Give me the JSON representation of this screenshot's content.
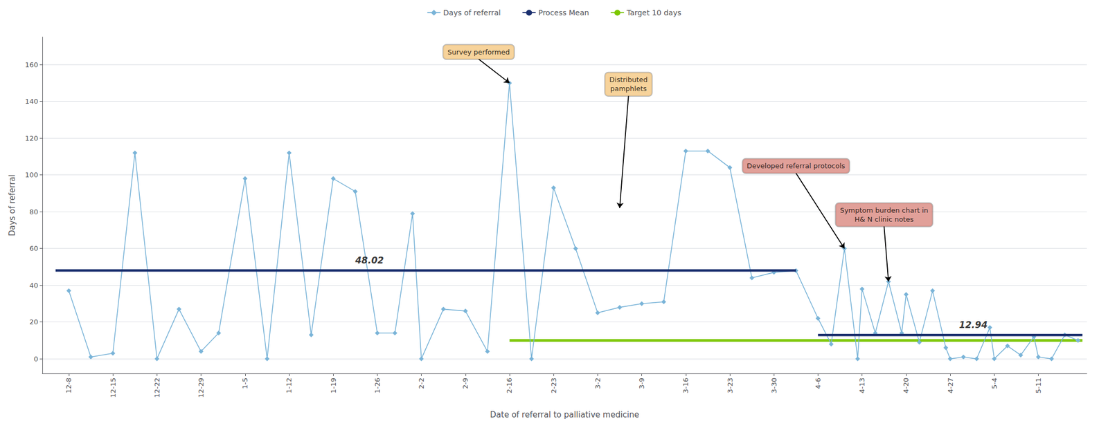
{
  "chart_data": {
    "type": "line",
    "xlabel": "Date of referral to palliative medicine",
    "ylabel": "Days of referral",
    "series": [
      {
        "name": "Days of referral",
        "type": "line",
        "color": "#7ab4d8",
        "marker": "diamond",
        "x": [
          0,
          0.5,
          1,
          1.5,
          2,
          2.5,
          3,
          3.4,
          4,
          4.5,
          5,
          5.5,
          6,
          6.5,
          7,
          7.4,
          7.8,
          8,
          8.5,
          9,
          9.5,
          10,
          10.5,
          11,
          11.5,
          12,
          12.5,
          13,
          13.5,
          14,
          14.5,
          15,
          15.5,
          16,
          16.5,
          17,
          17.3,
          17.6,
          17.9,
          18,
          18.3,
          18.6,
          18.9,
          19,
          19.3,
          19.6,
          19.9,
          20,
          20.3,
          20.6,
          20.9,
          21,
          21.3,
          21.6,
          21.9,
          22,
          22.3,
          22.6,
          22.9
        ],
        "values": [
          37,
          1,
          3,
          112,
          0,
          27,
          4,
          14,
          98,
          0,
          112,
          13,
          98,
          91,
          14,
          14,
          79,
          0,
          27,
          26,
          4,
          150,
          0,
          93,
          60,
          25,
          28,
          30,
          31,
          113,
          113,
          104,
          44,
          47,
          48,
          22,
          8,
          60,
          0,
          38,
          14,
          42,
          14,
          35,
          9,
          37,
          6,
          0,
          1,
          0,
          17,
          0,
          7,
          2,
          12,
          1,
          0,
          13,
          10
        ]
      },
      {
        "name": "Process Mean",
        "type": "line",
        "color": "#1a2f6e",
        "x": [
          -0.3,
          16.5
        ],
        "values": [
          48.02,
          48.02
        ]
      },
      {
        "name": "Process Mean",
        "type": "line",
        "color": "#1a2f6e",
        "x": [
          17.0,
          23.0
        ],
        "values": [
          12.94,
          12.94
        ]
      },
      {
        "name": "Target 10 days",
        "type": "line",
        "color": "#7dc700",
        "x": [
          10.0,
          23.0
        ],
        "values": [
          10,
          10
        ]
      }
    ],
    "annotations": [
      {
        "text": "48.02",
        "x": 6.5,
        "y": 51
      },
      {
        "text": "12.94",
        "x": 20.2,
        "y": 16
      },
      {
        "text": "Survey performed",
        "x": 9.3,
        "y": 163,
        "arrow_x": 10.0,
        "arrow_y": 150,
        "color": "#f5c882"
      },
      {
        "text": "Distributed\npamphlets",
        "x": 12.7,
        "y": 143,
        "arrow_x": 12.5,
        "arrow_y": 82,
        "color": "#f5c882"
      },
      {
        "text": "Developed referral protocols",
        "x": 16.5,
        "y": 101,
        "arrow_x": 17.6,
        "arrow_y": 60,
        "color": "#d98880"
      },
      {
        "text": "Symptom burden chart in\nH& N clinic notes",
        "x": 18.5,
        "y": 72,
        "arrow_x": 18.6,
        "arrow_y": 42,
        "color": "#d98880"
      }
    ],
    "xlim": [
      -0.6,
      23.1
    ],
    "xticks": [
      {
        "value": 0,
        "label": "12-8"
      },
      {
        "value": 1,
        "label": "12-15"
      },
      {
        "value": 2,
        "label": "12-22"
      },
      {
        "value": 3,
        "label": "12-29"
      },
      {
        "value": 4,
        "label": "1-5"
      },
      {
        "value": 5,
        "label": "1-12"
      },
      {
        "value": 6,
        "label": "1-19"
      },
      {
        "value": 7,
        "label": "1-26"
      },
      {
        "value": 8,
        "label": "2-2"
      },
      {
        "value": 9,
        "label": "2-9"
      },
      {
        "value": 10,
        "label": "2-16"
      },
      {
        "value": 11,
        "label": "2-23"
      },
      {
        "value": 12,
        "label": "3-2"
      },
      {
        "value": 13,
        "label": "3-9"
      },
      {
        "value": 14,
        "label": "3-16"
      },
      {
        "value": 15,
        "label": "3-23"
      },
      {
        "value": 16,
        "label": "3-30"
      },
      {
        "value": 17,
        "label": "4-6"
      },
      {
        "value": 18,
        "label": "4-13"
      },
      {
        "value": 19,
        "label": "4-20"
      },
      {
        "value": 20,
        "label": "4-27"
      },
      {
        "value": 21,
        "label": "5-4"
      },
      {
        "value": 22,
        "label": "5-11"
      }
    ],
    "ylim": [
      -8,
      175
    ],
    "yticks": [
      0,
      20,
      40,
      60,
      80,
      100,
      120,
      140,
      160
    ],
    "grid": true,
    "legend": "top"
  }
}
